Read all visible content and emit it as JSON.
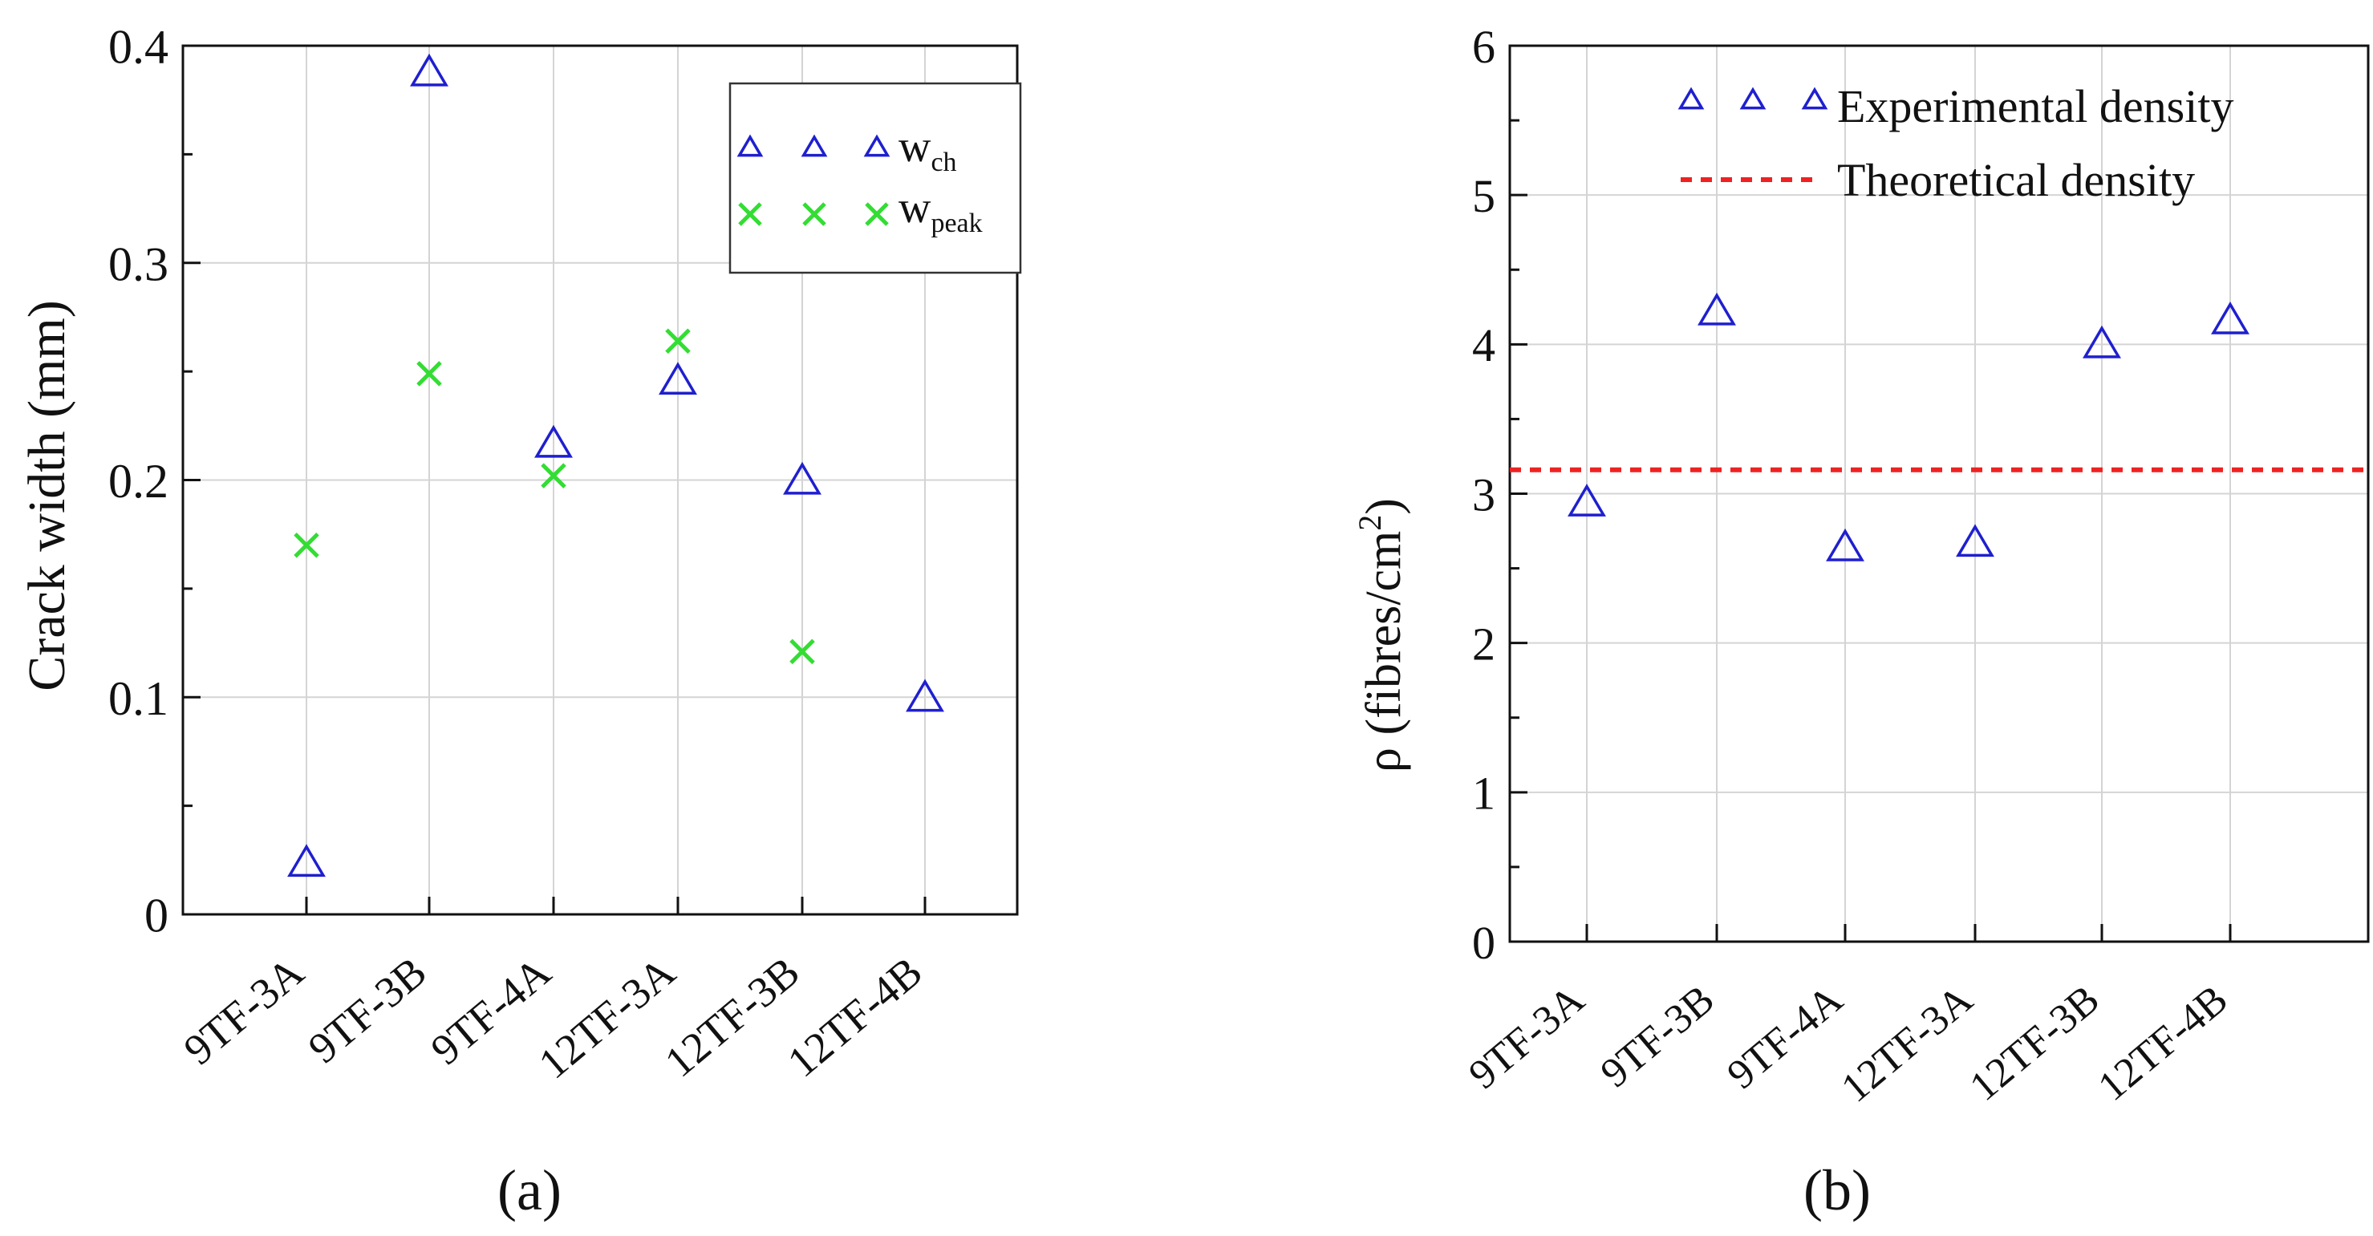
{
  "chart_data": [
    {
      "type": "scatter",
      "panel_label": "(a)",
      "title": "",
      "xlabel": "",
      "ylabel": "Crack width (mm)",
      "ylim": [
        0,
        0.4
      ],
      "yticks": [
        "0",
        "0.1",
        "0.2",
        "0.3",
        "0.4"
      ],
      "categories": [
        "9TF-3A",
        "9TF-3B",
        "9TF-4A",
        "12TF-3A",
        "12TF-3B",
        "12TF-4B"
      ],
      "grid": true,
      "legend_position": "top-right",
      "series": [
        {
          "name": "w",
          "subscript": "ch",
          "marker": "triangle",
          "color": "#1f1fcf",
          "values": [
            0.023,
            0.387,
            0.216,
            0.245,
            0.199,
            0.099
          ]
        },
        {
          "name": "w",
          "subscript": "peak",
          "marker": "cross",
          "color": "#33dd33",
          "values": [
            0.17,
            0.249,
            0.202,
            0.264,
            0.121,
            null
          ]
        }
      ]
    },
    {
      "type": "scatter",
      "panel_label": "(b)",
      "title": "",
      "xlabel": "",
      "ylabel_prefix": "ρ (fibres/cm",
      "ylabel_sup": "2",
      "ylabel_suffix": ")",
      "ylim": [
        0,
        6
      ],
      "yticks": [
        "0",
        "1",
        "2",
        "3",
        "4",
        "5",
        "6"
      ],
      "categories": [
        "9TF-3A",
        "9TF-3B",
        "9TF-4A",
        "12TF-3A",
        "12TF-3B",
        "12TF-4B"
      ],
      "grid": true,
      "legend_position": "top-right",
      "series": [
        {
          "name": "Experimental density",
          "marker": "triangle",
          "color": "#1f1fcf",
          "values": [
            2.93,
            4.21,
            2.63,
            2.66,
            3.99,
            4.15
          ]
        }
      ],
      "reference_lines": [
        {
          "name": "Theoretical density",
          "style": "dashed",
          "color": "#ee2222",
          "y": 3.16
        }
      ]
    }
  ]
}
